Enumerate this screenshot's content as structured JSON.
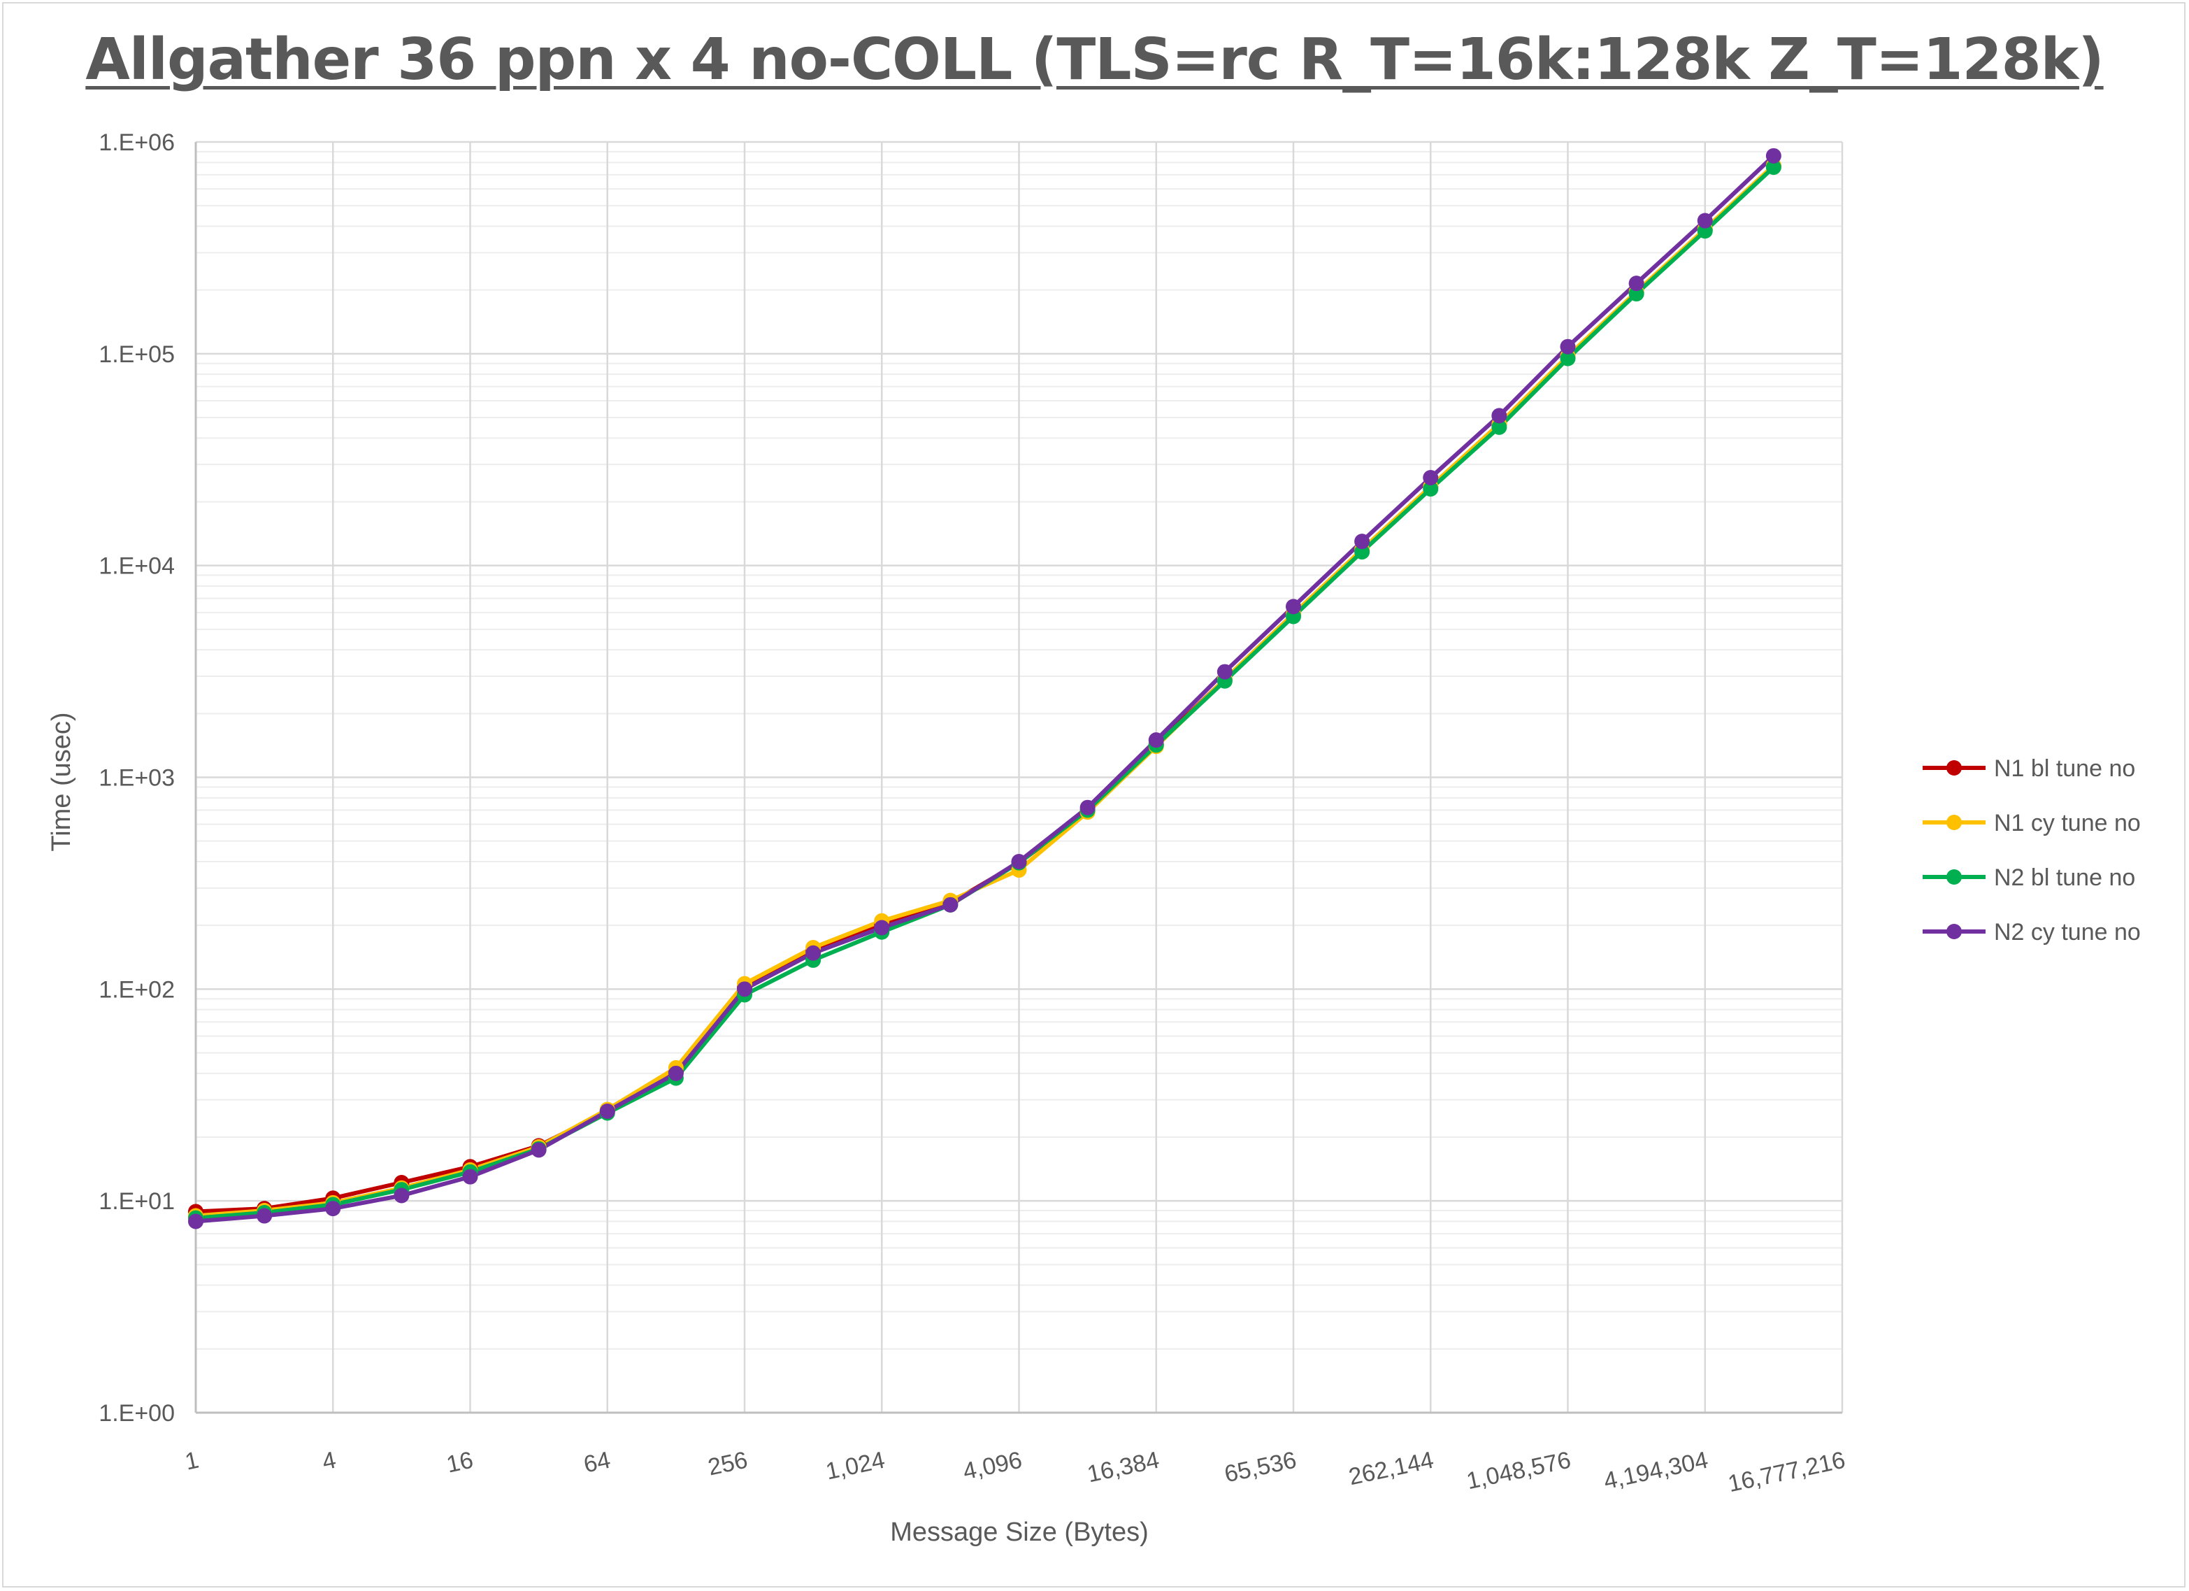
{
  "chart_data": {
    "type": "line",
    "title": "Allgather 36 ppn x 4 no-COLL (TLS=rc R_T=16k:128k Z_T=128k)",
    "xlabel": "Message Size (Bytes)",
    "ylabel": "Time (usec)",
    "x_scale": "log2",
    "y_scale": "log10",
    "xlim": [
      1,
      16777216
    ],
    "ylim": [
      1,
      1000000
    ],
    "x_tick_values": [
      1,
      4,
      16,
      64,
      256,
      1024,
      4096,
      16384,
      65536,
      262144,
      1048576,
      4194304,
      16777216
    ],
    "x_tick_labels": [
      "1",
      "4",
      "16",
      "64",
      "256",
      "1,024",
      "4,096",
      "16,384",
      "65,536",
      "262,144",
      "1,048,576",
      "4,194,304",
      "16,777,216"
    ],
    "y_tick_values": [
      1,
      10,
      100,
      1000,
      10000,
      100000,
      1000000
    ],
    "y_tick_labels": [
      "1.E+00",
      "1.E+01",
      "1.E+02",
      "1.E+03",
      "1.E+04",
      "1.E+05",
      "1.E+06"
    ],
    "grid": true,
    "legend_position": "right",
    "x": [
      1,
      2,
      4,
      8,
      16,
      32,
      64,
      128,
      256,
      512,
      1024,
      2048,
      4096,
      8192,
      16384,
      32768,
      65536,
      131072,
      262144,
      524288,
      1048576,
      2097152,
      4194304,
      8388608
    ],
    "series": [
      {
        "name": "N1 bl tune no",
        "color": "#c00000",
        "values": [
          8.9,
          9.2,
          10.3,
          12.2,
          14.5,
          18.2,
          26.5,
          40.5,
          102,
          152,
          200,
          255,
          395,
          690,
          1430,
          2900,
          5900,
          11800,
          23500,
          46500,
          97000,
          195000,
          385000,
          770000
        ]
      },
      {
        "name": "N1 cy tune no",
        "color": "#ffc000",
        "values": [
          8.5,
          9.0,
          9.8,
          11.5,
          14.0,
          18.0,
          27.0,
          42.5,
          106,
          157,
          210,
          262,
          365,
          685,
          1400,
          2900,
          5900,
          11900,
          23600,
          46500,
          97500,
          196000,
          388000,
          775000
        ]
      },
      {
        "name": "N2 bl tune no",
        "color": "#00b050",
        "values": [
          8.3,
          8.8,
          9.6,
          11.3,
          13.7,
          17.6,
          26.0,
          38.0,
          94,
          137,
          186,
          250,
          395,
          700,
          1420,
          2850,
          5750,
          11600,
          23000,
          45000,
          95000,
          192000,
          380000,
          760000
        ]
      },
      {
        "name": "N2 cy tune no",
        "color": "#7030a0",
        "values": [
          8.0,
          8.5,
          9.2,
          10.6,
          13.0,
          17.4,
          26.5,
          40.0,
          100,
          148,
          195,
          250,
          400,
          720,
          1500,
          3150,
          6400,
          13000,
          26000,
          51000,
          108000,
          215000,
          425000,
          860000
        ]
      }
    ]
  }
}
